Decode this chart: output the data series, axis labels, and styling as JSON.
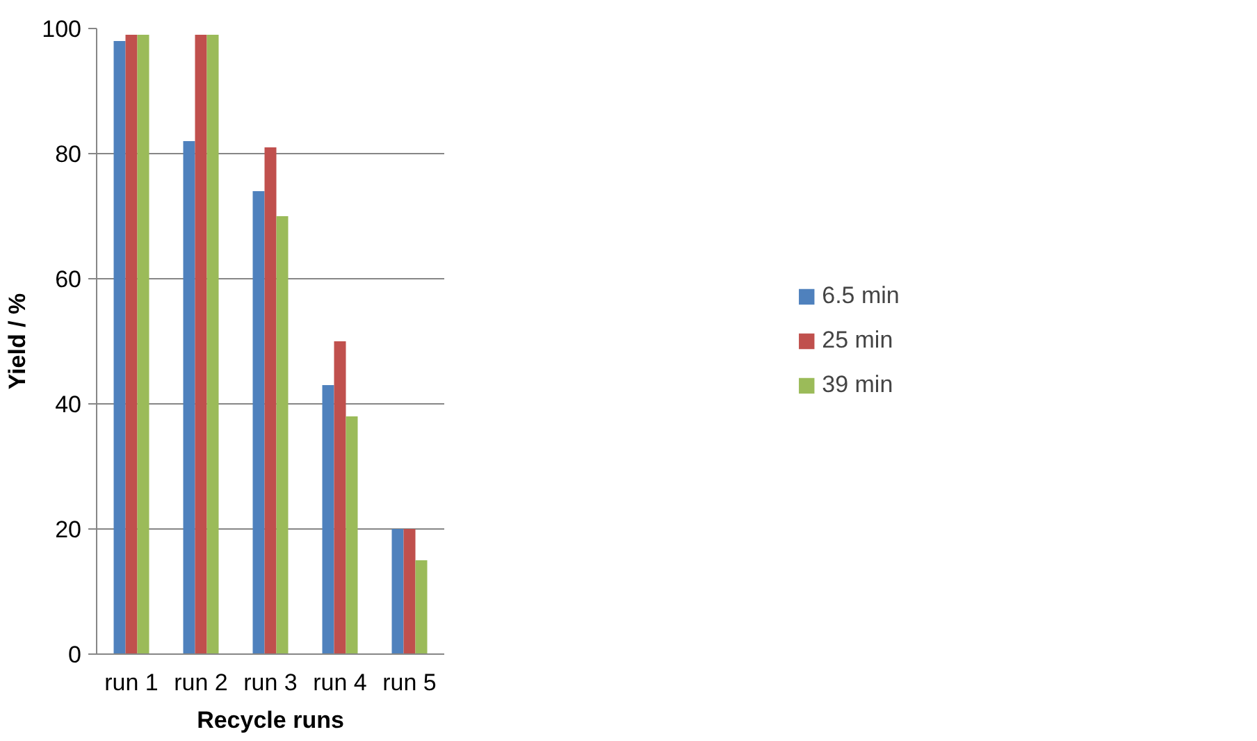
{
  "chart_data": {
    "type": "bar",
    "xlabel": "Recycle runs",
    "ylabel": "Yield / %",
    "categories": [
      "run 1",
      "run 2",
      "run 3",
      "run 4",
      "run 5"
    ],
    "series": [
      {
        "name": "6.5 min",
        "color": "#4f81bd",
        "values": [
          98,
          82,
          74,
          43,
          20
        ]
      },
      {
        "name": "25 min",
        "color": "#c0504d",
        "values": [
          99,
          99,
          81,
          50,
          20
        ]
      },
      {
        "name": "39 min",
        "color": "#9bbb59",
        "values": [
          99,
          99,
          70,
          38,
          15
        ]
      }
    ],
    "ylim": [
      0,
      100
    ],
    "yticks": [
      0,
      20,
      40,
      60,
      80,
      100
    ],
    "grid": "y",
    "legend": "right"
  }
}
